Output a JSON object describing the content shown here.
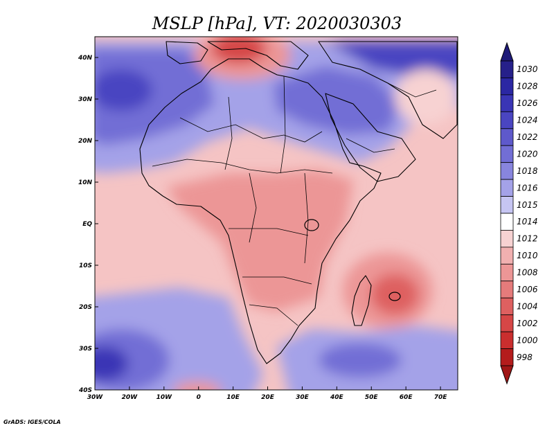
{
  "title": "MSLP [hPa], VT: 2020030303",
  "credit": "GrADS: IGES/COLA",
  "map": {
    "variable": "MSLP",
    "units": "hPa",
    "valid_time": "2020030303",
    "region": "Africa",
    "lon_range": [
      -30,
      75
    ],
    "lat_range": [
      -40,
      45
    ],
    "lon_ticks": [
      {
        "value": -30,
        "label": "30W"
      },
      {
        "value": -20,
        "label": "20W"
      },
      {
        "value": -10,
        "label": "10W"
      },
      {
        "value": 0,
        "label": "0"
      },
      {
        "value": 10,
        "label": "10E"
      },
      {
        "value": 20,
        "label": "20E"
      },
      {
        "value": 30,
        "label": "30E"
      },
      {
        "value": 40,
        "label": "40E"
      },
      {
        "value": 50,
        "label": "50E"
      },
      {
        "value": 60,
        "label": "60E"
      },
      {
        "value": 70,
        "label": "70E"
      }
    ],
    "lat_ticks": [
      {
        "value": 40,
        "label": "40N"
      },
      {
        "value": 30,
        "label": "30N"
      },
      {
        "value": 20,
        "label": "20N"
      },
      {
        "value": 10,
        "label": "10N"
      },
      {
        "value": 0,
        "label": "EQ"
      },
      {
        "value": -10,
        "label": "10S"
      },
      {
        "value": -20,
        "label": "20S"
      },
      {
        "value": -30,
        "label": "30S"
      },
      {
        "value": -40,
        "label": "40S"
      }
    ],
    "pressure_centers": [
      {
        "kind": "high",
        "lon": -22,
        "lat": 31,
        "value": 1026
      },
      {
        "kind": "high",
        "lon": -27,
        "lat": -33,
        "value": 1030
      },
      {
        "kind": "high",
        "lon": 44,
        "lat": -33,
        "value": 1020
      },
      {
        "kind": "high",
        "lon": 62,
        "lat": 41,
        "value": 1024
      },
      {
        "kind": "high",
        "lon": 40,
        "lat": 27,
        "value": 1020
      },
      {
        "kind": "low",
        "lon": 16,
        "lat": 42,
        "value": 1000
      },
      {
        "kind": "low",
        "lon": 57,
        "lat": -17,
        "value": 1006
      },
      {
        "kind": "low",
        "lon": 0,
        "lat": -40,
        "value": 1010
      },
      {
        "kind": "low",
        "lon": 30,
        "lat": 0,
        "value": 1010
      },
      {
        "kind": "low",
        "lon": 62,
        "lat": 30,
        "value": 1010
      }
    ]
  },
  "colorbar": {
    "levels": [
      {
        "value": 1030,
        "label": "1030",
        "color": "#26208a"
      },
      {
        "value": 1028,
        "label": "1028",
        "color": "#2b27a3"
      },
      {
        "value": 1026,
        "label": "1026",
        "color": "#3a35b5"
      },
      {
        "value": 1024,
        "label": "1024",
        "color": "#4a45c1"
      },
      {
        "value": 1022,
        "label": "1022",
        "color": "#5e59cb"
      },
      {
        "value": 1020,
        "label": "1020",
        "color": "#726ed5"
      },
      {
        "value": 1018,
        "label": "1018",
        "color": "#8885de"
      },
      {
        "value": 1016,
        "label": "1016",
        "color": "#a4a2e8"
      },
      {
        "value": 1015,
        "label": "1015",
        "color": "#c6c5f2"
      },
      {
        "value": 1014,
        "label": "1014",
        "color": "#ffffff"
      },
      {
        "value": 1012,
        "label": "1012",
        "color": "#f7d2d2"
      },
      {
        "value": 1010,
        "label": "1010",
        "color": "#f1b0b0"
      },
      {
        "value": 1008,
        "label": "1008",
        "color": "#ec9696"
      },
      {
        "value": 1006,
        "label": "1006",
        "color": "#e57b7b"
      },
      {
        "value": 1004,
        "label": "1004",
        "color": "#de6060"
      },
      {
        "value": 1002,
        "label": "1002",
        "color": "#d64646"
      },
      {
        "value": 1000,
        "label": "1000",
        "color": "#ca2e2e"
      },
      {
        "value": 998,
        "label": "998",
        "color": "#b41c1c"
      }
    ],
    "top_arrow_color": "#1e1a78",
    "bottom_arrow_color": "#a01616"
  }
}
